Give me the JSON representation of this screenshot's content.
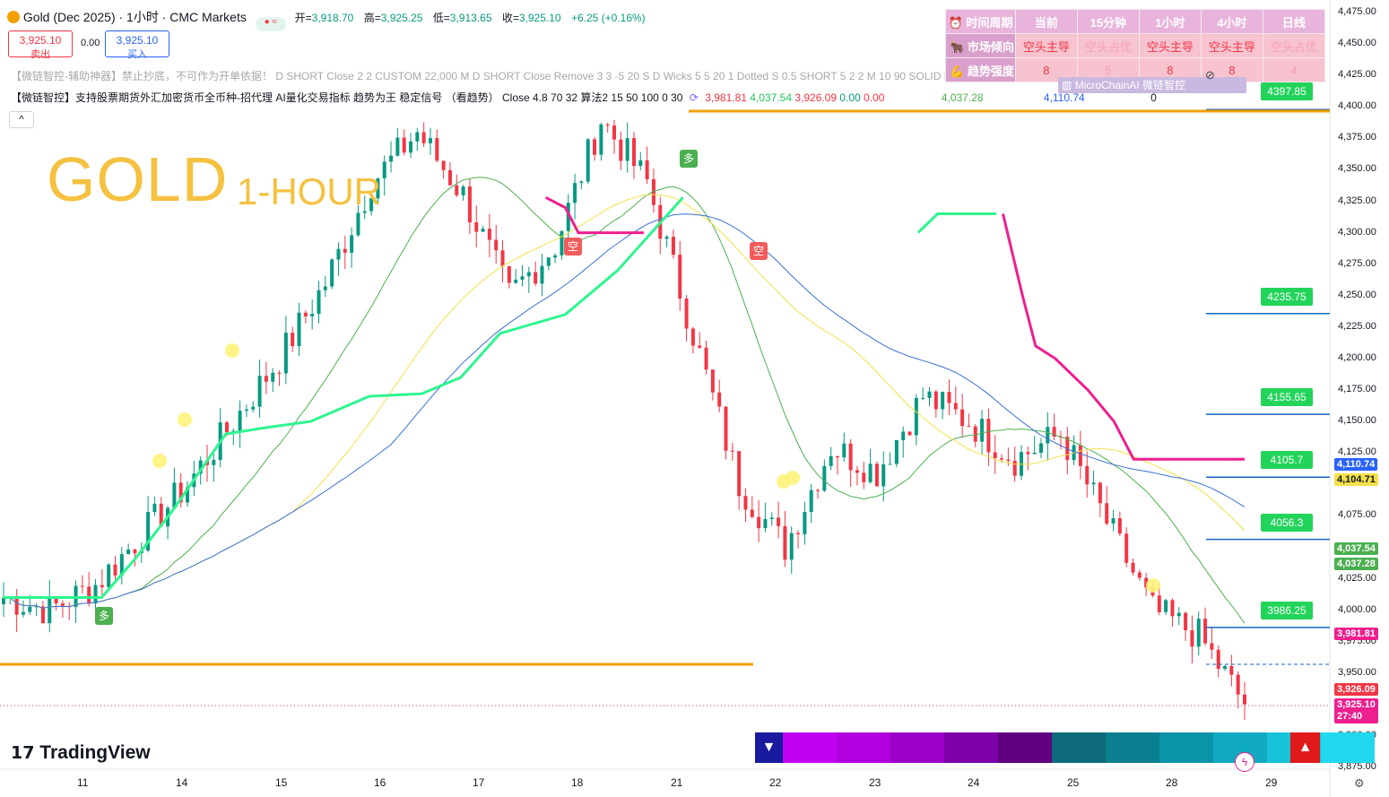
{
  "header": {
    "symbol": "Gold (Dec 2025) · 1小时 · CMC Markets",
    "open_label": "开=",
    "open": "3,918.70",
    "high_label": "高=",
    "high": "3,925.25",
    "low_label": "低=",
    "low": "3,913.65",
    "close_label": "收=",
    "close": "3,925.10",
    "change": "+6.25 (+0.16%)",
    "sell_price": "3,925.10",
    "sell_label": "卖出",
    "spread": "0.00",
    "buy_price": "3,925.10",
    "buy_label": "买入"
  },
  "indicator1": "【微链智控-辅助神器】禁止抄底，不可作为开单依据！ D SHORT Close 2 2 CUSTOM 22,000 M D SHORT Close Remove 3 3 -5 20 S D Wicks 5 5 20 1 Dotted S 0.5 SHORT 5 2 2 M 10 90 SOLID DOTTED 2 ALL 10 5 50 M 0.3 S SHORT M 10",
  "indicator2": {
    "text": "【微链智控】支持股票期货外汇加密货币全币种-招代理 AI量化交易指标 趋势为王 稳定信号 （看趋势） Close 4.8 70 32 算法2 15 50 100 0 30",
    "v1": "3,981.81",
    "v2": "4,037.54",
    "v3": "3,926.09",
    "v4": "0.00",
    "v5": "0.00",
    "v6": "4,037.28",
    "v7": "4,110.74",
    "v8": "0"
  },
  "watermark": {
    "title": "GOLD",
    "subtitle": "1-HOUR"
  },
  "micro_label": "MicroChainAI 微链智控",
  "table": {
    "headers": [
      "时间周期",
      "当前",
      "15分钟",
      "1小时",
      "4小时",
      "日线"
    ],
    "row1": [
      "市场倾向",
      "空头主导",
      "空头占优",
      "空头主导",
      "空头主导",
      "空头占优"
    ],
    "row2": [
      "趋势强度",
      "8",
      "5",
      "8",
      "8",
      "4"
    ]
  },
  "y_axis": [
    "4,475.00",
    "4,450.00",
    "4,425.00",
    "4,400.00",
    "4,375.00",
    "4,350.00",
    "4,325.00",
    "4,300.00",
    "4,275.00",
    "4,250.00",
    "4,225.00",
    "4,200.00",
    "4,175.00",
    "4,150.00",
    "4,125.00",
    "4,075.00",
    "4,025.00",
    "4,000.00",
    "3,975.00",
    "3,950.00",
    "3,900.00",
    "3,875.00"
  ],
  "x_axis": [
    "11",
    "14",
    "15",
    "16",
    "17",
    "18",
    "21",
    "22",
    "23",
    "24",
    "25",
    "28",
    "29"
  ],
  "price_tags": {
    "p1": "4,110.74",
    "p2": "4,104.71",
    "p3": "4,037.54",
    "p4": "4,037.28",
    "p5": "3,981.81",
    "p6": "3,926.09",
    "p7": "3,925.10",
    "p8": "27:40"
  },
  "levels": [
    "4397.85",
    "4235.75",
    "4155.65",
    "4105.7",
    "4056.3",
    "3986.25"
  ],
  "signals": {
    "long": "多",
    "short": "空"
  },
  "brand": "TradingView",
  "colors": {
    "bull": "#089981",
    "bear": "#f23645",
    "trail_up": "#2ef58f",
    "trail_down": "#ee1f8f",
    "ma_green": "#4caf50",
    "ma_yellow": "#f5e04a",
    "ma_blue": "#3b6fd8",
    "level_line": "#1565c0",
    "orange": "#f0a000"
  },
  "chart_data": {
    "type": "candlestick",
    "ylim": [
      3875,
      4475
    ],
    "series_close_sketch": [
      4010,
      4000,
      4020,
      4060,
      4100,
      4150,
      4200,
      4260,
      4340,
      4380,
      4330,
      4250,
      4290,
      4390,
      4340,
      4220,
      4100,
      4050,
      4130,
      4110,
      4170,
      4150,
      4120,
      4140,
      4070,
      4000,
      3980,
      3925
    ],
    "candles_total": 190
  }
}
